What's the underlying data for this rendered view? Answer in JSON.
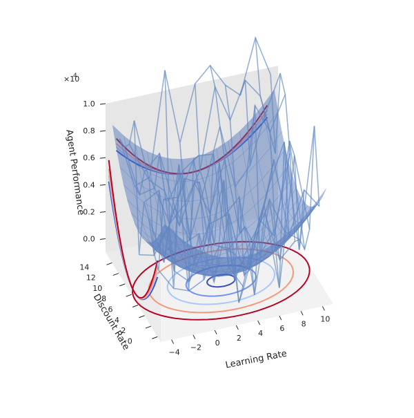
{
  "chart_data": {
    "type": "surface3d",
    "title": "",
    "xlabel": "Learning Rate",
    "ylabel": "Discount Rate",
    "zlabel": "Agent Performance",
    "z_scale_label": "×10",
    "z_scale_exponent": "4",
    "xlim": [
      -5,
      11
    ],
    "ylim": [
      -1,
      16
    ],
    "zlim": [
      -0.1,
      1.0
    ],
    "x_ticks": [
      "−4",
      "−2",
      "0",
      "2",
      "4",
      "6",
      "8",
      "10"
    ],
    "y_ticks": [
      "0",
      "2",
      "4",
      "6",
      "8",
      "10",
      "12",
      "14"
    ],
    "z_ticks": [
      "0.0",
      "0.2",
      "0.4",
      "0.6",
      "0.8",
      "1.0"
    ],
    "surface": {
      "model": "paraboloid",
      "center": [
        3,
        7
      ],
      "min_z": 0.0,
      "edge_z": 0.6,
      "color": "#4a6fb8",
      "alpha": 0.55
    },
    "wireframe": {
      "noise_range": [
        -0.3,
        0.8
      ],
      "color": "#5f86c0"
    },
    "contours": {
      "colormap": "coolwarm",
      "levels": 5,
      "colors": [
        "#3b4cc0",
        "#6f92f3",
        "#aac7fd",
        "#f4987a",
        "#b40426"
      ]
    },
    "grid": false,
    "pane_color": "#ececec"
  }
}
